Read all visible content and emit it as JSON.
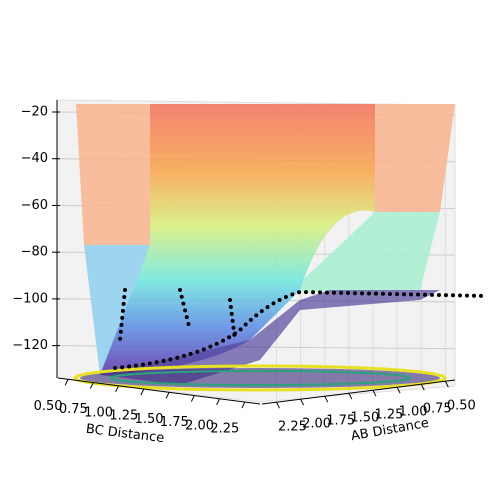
{
  "chart_data": {
    "type": "surface3d",
    "xlabel": "BC Distance",
    "ylabel": "AB Distance",
    "xlim": [
      0.4,
      2.4
    ],
    "xticks": [
      {
        "value": 0.5,
        "label": "0.50"
      },
      {
        "value": 0.75,
        "label": "0.75"
      },
      {
        "value": 1.0,
        "label": "1.00"
      },
      {
        "value": 1.25,
        "label": "1.25"
      },
      {
        "value": 1.5,
        "label": "1.50"
      },
      {
        "value": 1.75,
        "label": "1.75"
      },
      {
        "value": 2.0,
        "label": "2.00"
      },
      {
        "value": 2.25,
        "label": "2.25"
      }
    ],
    "ylim": [
      2.4,
      0.4
    ],
    "yticks": [
      {
        "value": 2.25,
        "label": "2.25"
      },
      {
        "value": 2.0,
        "label": "2.00"
      },
      {
        "value": 1.75,
        "label": "1.75"
      },
      {
        "value": 1.5,
        "label": "1.50"
      },
      {
        "value": 1.25,
        "label": "1.25"
      },
      {
        "value": 1.0,
        "label": "1.00"
      },
      {
        "value": 0.75,
        "label": "0.75"
      },
      {
        "value": 0.5,
        "label": "0.50"
      }
    ],
    "zlim": [
      -136,
      -17
    ],
    "zticks": [
      {
        "value": -20,
        "label": "−20"
      },
      {
        "value": -40,
        "label": "−40"
      },
      {
        "value": -60,
        "label": "−60"
      },
      {
        "value": -80,
        "label": "−80"
      },
      {
        "value": -100,
        "label": "−100"
      },
      {
        "value": -120,
        "label": "−120"
      }
    ],
    "grid": true
  }
}
